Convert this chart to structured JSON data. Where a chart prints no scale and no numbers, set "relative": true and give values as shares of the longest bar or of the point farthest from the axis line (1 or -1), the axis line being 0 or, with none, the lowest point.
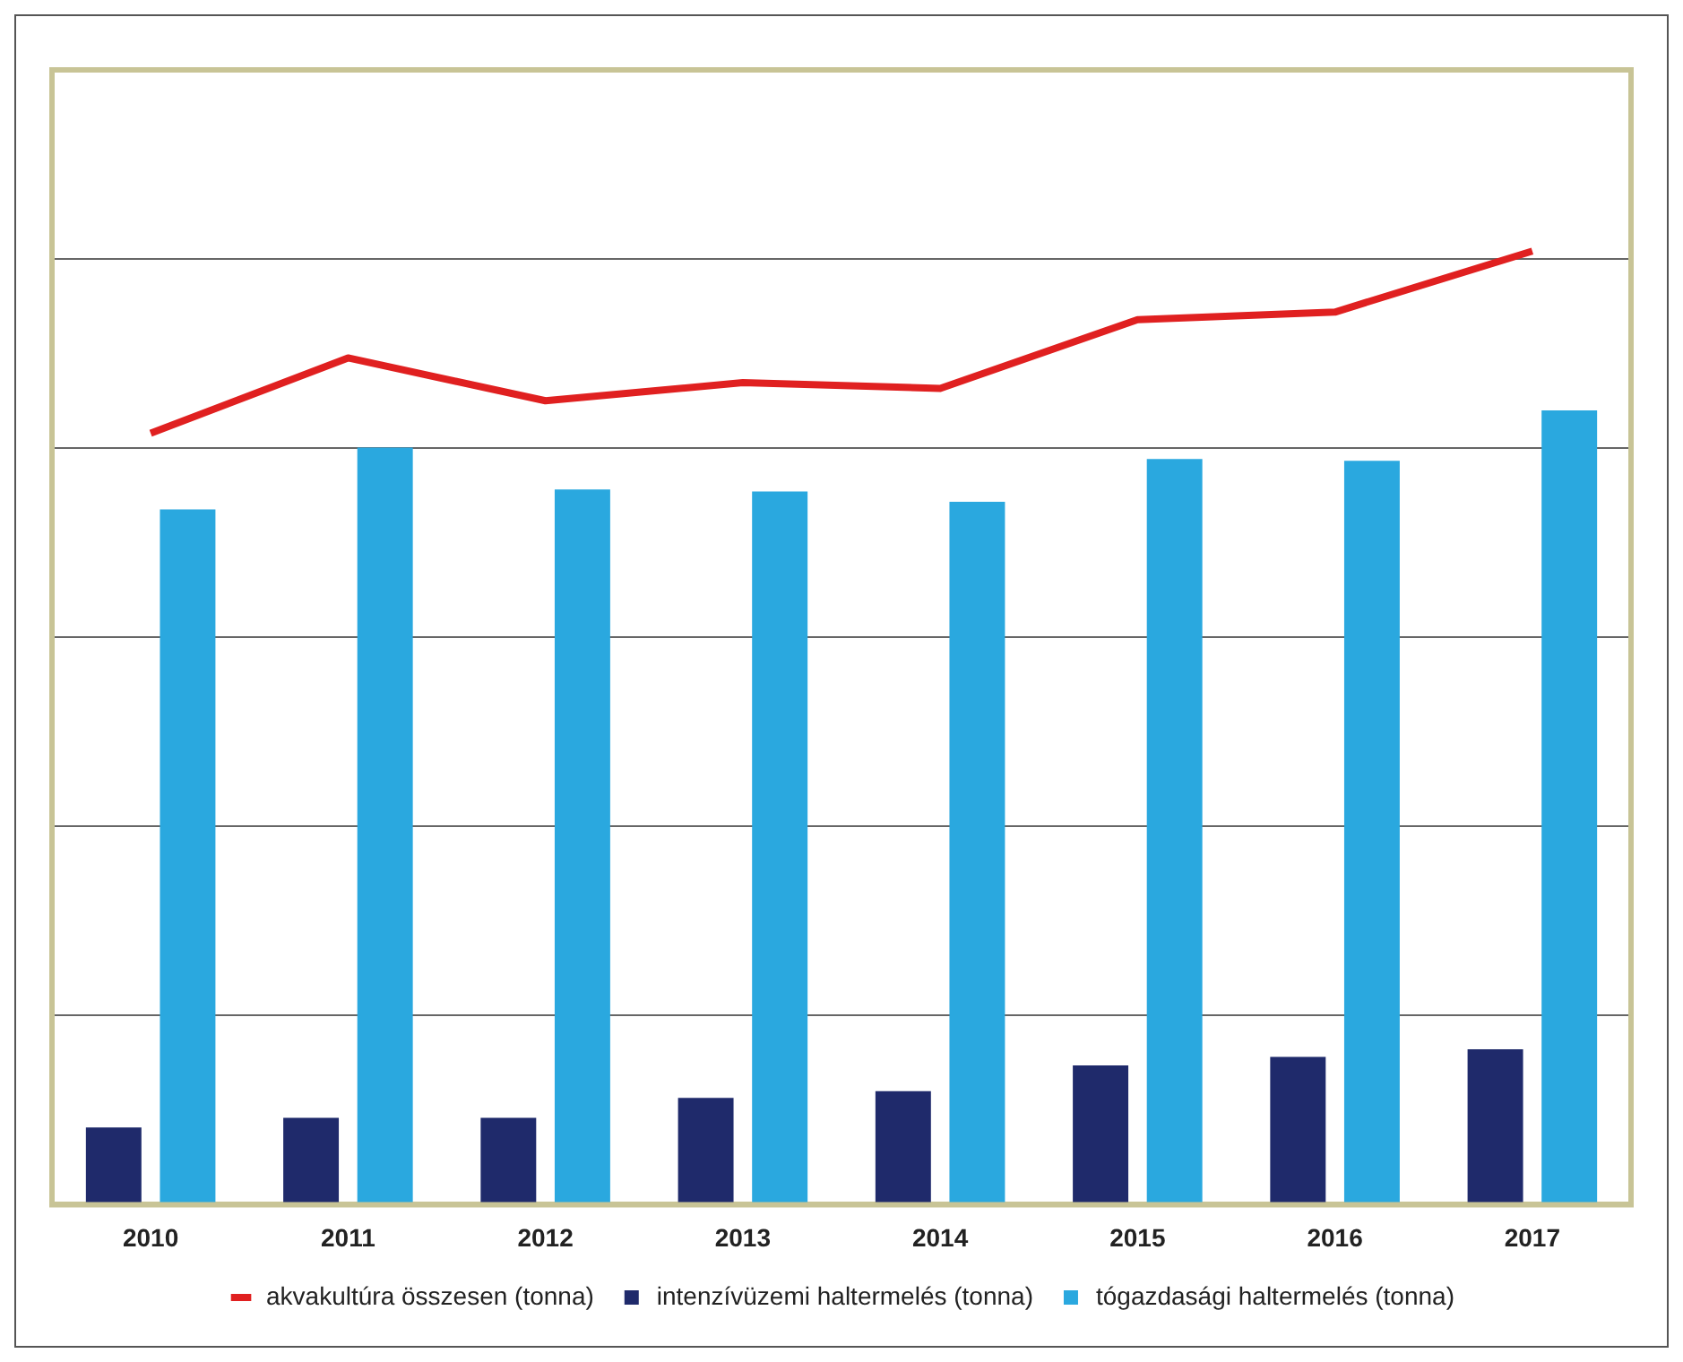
{
  "chart_data": {
    "type": "bar",
    "relative": true,
    "categories": [
      "2010",
      "2011",
      "2012",
      "2013",
      "2014",
      "2015",
      "2016",
      "2017"
    ],
    "grid": "y",
    "legend": "bottom",
    "series": [
      {
        "name": "intenzívüzemi haltermelés (tonna)",
        "color": "#1f2a6b",
        "values": [
          0.081,
          0.091,
          0.091,
          0.112,
          0.119,
          0.146,
          0.155,
          0.163
        ]
      },
      {
        "name": "tógazdasági haltermelés (tonna)",
        "color": "#2aa8df",
        "values": [
          0.729,
          0.794,
          0.75,
          0.748,
          0.737,
          0.782,
          0.78,
          0.833
        ]
      },
      {
        "name": "akvakultúra összesen (tonna)",
        "type": "line",
        "color": "#e02020",
        "values": [
          0.809,
          0.888,
          0.843,
          0.862,
          0.856,
          0.928,
          0.936,
          1.0
        ]
      }
    ]
  }
}
